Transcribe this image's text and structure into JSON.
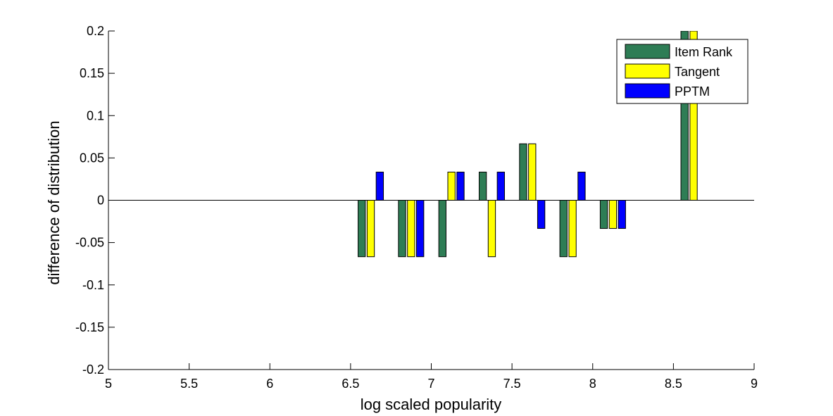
{
  "chart_data": {
    "type": "bar",
    "title": "",
    "xlabel": "log scaled popularity",
    "ylabel": "difference of distribution",
    "xlim": [
      5,
      9
    ],
    "ylim": [
      -0.2,
      0.2
    ],
    "xticks": [
      5,
      5.5,
      6,
      6.5,
      7,
      7.5,
      8,
      8.5,
      9
    ],
    "xtick_labels": [
      "5",
      "5.5",
      "6",
      "6.5",
      "7",
      "7.5",
      "8",
      "8.5",
      "9"
    ],
    "yticks": [
      0.2,
      0.15,
      0.1,
      0.05,
      0,
      -0.05,
      -0.1,
      -0.15,
      -0.2
    ],
    "ytick_labels": [
      "0.2",
      "0.15",
      "0.1",
      "0.05",
      "0",
      "-0.05",
      "-0.1",
      "-0.15",
      "-0.2"
    ],
    "categories": [
      6.625,
      6.875,
      7.125,
      7.375,
      7.625,
      7.875,
      8.125,
      8.625
    ],
    "group_offsets": [
      -0.056,
      0,
      0.056
    ],
    "bar_width": 0.045,
    "series": [
      {
        "name": "Item Rank",
        "color": "#2e7d55",
        "values": [
          -0.0667,
          -0.0667,
          -0.0667,
          0.0333,
          0.0667,
          -0.0667,
          -0.0333,
          0.2
        ]
      },
      {
        "name": "Tangent",
        "color": "#ffff00",
        "values": [
          -0.0667,
          -0.0667,
          0.0333,
          -0.0667,
          0.0667,
          -0.0667,
          -0.0333,
          0.2
        ]
      },
      {
        "name": "PPTM",
        "color": "#0000ff",
        "values": [
          0.0333,
          -0.0667,
          0.0333,
          0.0333,
          -0.0333,
          0.0333,
          -0.0333,
          0
        ]
      }
    ],
    "legend_position": "top-right",
    "grid": false
  }
}
